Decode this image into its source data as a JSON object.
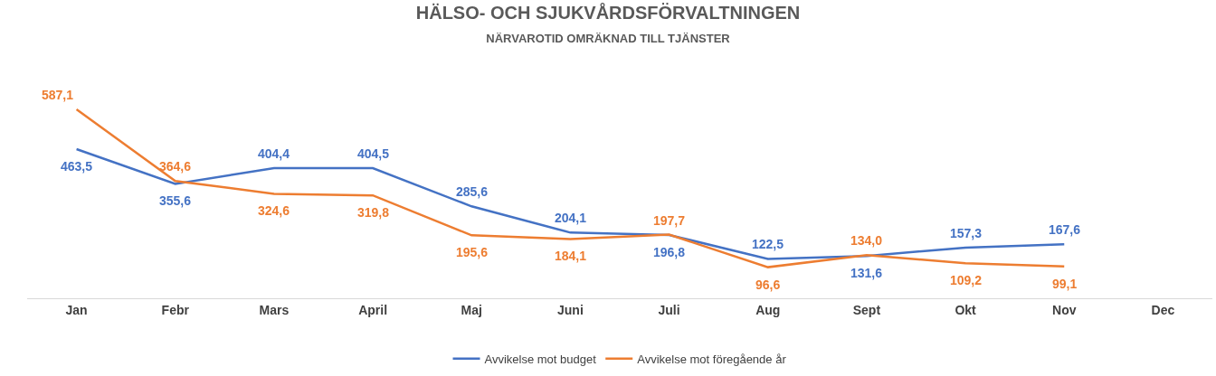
{
  "chart_data": {
    "type": "line",
    "title": "HÄLSO- OCH SJUKVÅRDSFÖRVALTNINGEN",
    "subtitle": "NÄRVAROTID OMRÄKNAD TILL TJÄNSTER",
    "categories": [
      "Jan",
      "Febr",
      "Mars",
      "April",
      "Maj",
      "Juni",
      "Juli",
      "Aug",
      "Sept",
      "Okt",
      "Nov",
      "Dec"
    ],
    "series": [
      {
        "name": "Avvikelse mot budget",
        "color": "#4472c4",
        "values": [
          463.5,
          355.6,
          404.4,
          404.5,
          285.6,
          204.1,
          196.8,
          122.5,
          131.6,
          157.3,
          167.6,
          null
        ],
        "value_labels": [
          "463,5",
          "355,6",
          "404,4",
          "404,5",
          "285,6",
          "204,1",
          "196,8",
          "122,5",
          "131,6",
          "157,3",
          "167,6",
          null
        ]
      },
      {
        "name": "Avvikelse mot föregående år",
        "color": "#ed7d31",
        "values": [
          587.1,
          364.6,
          324.6,
          319.8,
          195.6,
          184.1,
          197.7,
          96.6,
          134.0,
          109.2,
          99.1,
          null
        ],
        "value_labels": [
          "587,1",
          "364,6",
          "324,6",
          "319,8",
          "195,6",
          "184,1",
          "197,7",
          "96,6",
          "134,0",
          "109,2",
          "99,1",
          null
        ]
      }
    ],
    "tick_labels": "x",
    "legend": "bottom",
    "marker": "none",
    "line_style": "solid"
  }
}
